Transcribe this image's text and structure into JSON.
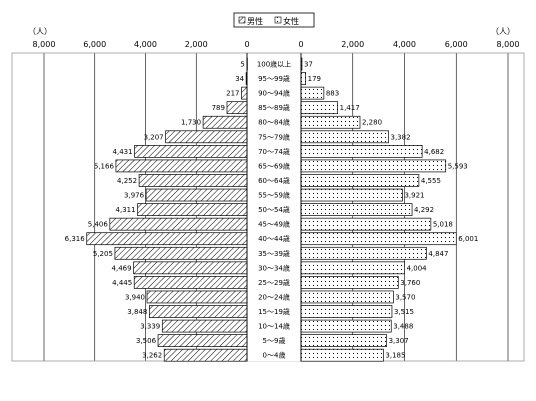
{
  "chart_data": {
    "type": "bar",
    "orientation": "horizontal",
    "layout": "population-pyramid",
    "unit_left": "（人）",
    "unit_right": "（人）",
    "x_range": [
      0,
      8000
    ],
    "tick_values": [
      8000,
      6000,
      4000,
      2000,
      0
    ],
    "tick_labels_left": [
      "8,000",
      "6,000",
      "4,000",
      "2,000",
      "0"
    ],
    "tick_labels_right": [
      "0",
      "2,000",
      "4,000",
      "6,000",
      "8,000"
    ],
    "grid": true,
    "legend_position": "top-center",
    "categories": [
      "100歳以上",
      "95～99歳",
      "90～94歳",
      "85～89歳",
      "80～84歳",
      "75～79歳",
      "70～74歳",
      "65～69歳",
      "60～64歳",
      "55～59歳",
      "50～54歳",
      "45～49歳",
      "40～44歳",
      "35～39歳",
      "30～34歳",
      "25～29歳",
      "20～24歳",
      "15～19歳",
      "10～14歳",
      "5～9歳",
      "0～4歳"
    ],
    "series": [
      {
        "name": "男性",
        "side": "left",
        "values": [
          5,
          34,
          217,
          789,
          1730,
          3207,
          4431,
          5166,
          4252,
          3976,
          4311,
          5406,
          6316,
          5205,
          4469,
          4445,
          3940,
          3848,
          3339,
          3506,
          3262
        ],
        "labels": [
          "5",
          "34",
          "217",
          "789",
          "1,730",
          "3,207",
          "4,431",
          "5,166",
          "4,252",
          "3,976",
          "4,311",
          "5,406",
          "6,316",
          "5,205",
          "4,469",
          "4,445",
          "3,940",
          "3,848",
          "3,339",
          "3,506",
          "3,262"
        ]
      },
      {
        "name": "女性",
        "side": "right",
        "values": [
          37,
          179,
          883,
          1417,
          2280,
          3382,
          4682,
          5593,
          4555,
          3921,
          4292,
          5018,
          6001,
          4847,
          4004,
          3760,
          3570,
          3515,
          3488,
          3307,
          3185
        ],
        "labels": [
          "37",
          "179",
          "883",
          "1,417",
          "2,280",
          "3,382",
          "4,682",
          "5,593",
          "4,555",
          "3,921",
          "4,292",
          "5,018",
          "6,001",
          "4,847",
          "4,004",
          "3,760",
          "3,570",
          "3,515",
          "3,488",
          "3,307",
          "3,185"
        ]
      }
    ]
  }
}
